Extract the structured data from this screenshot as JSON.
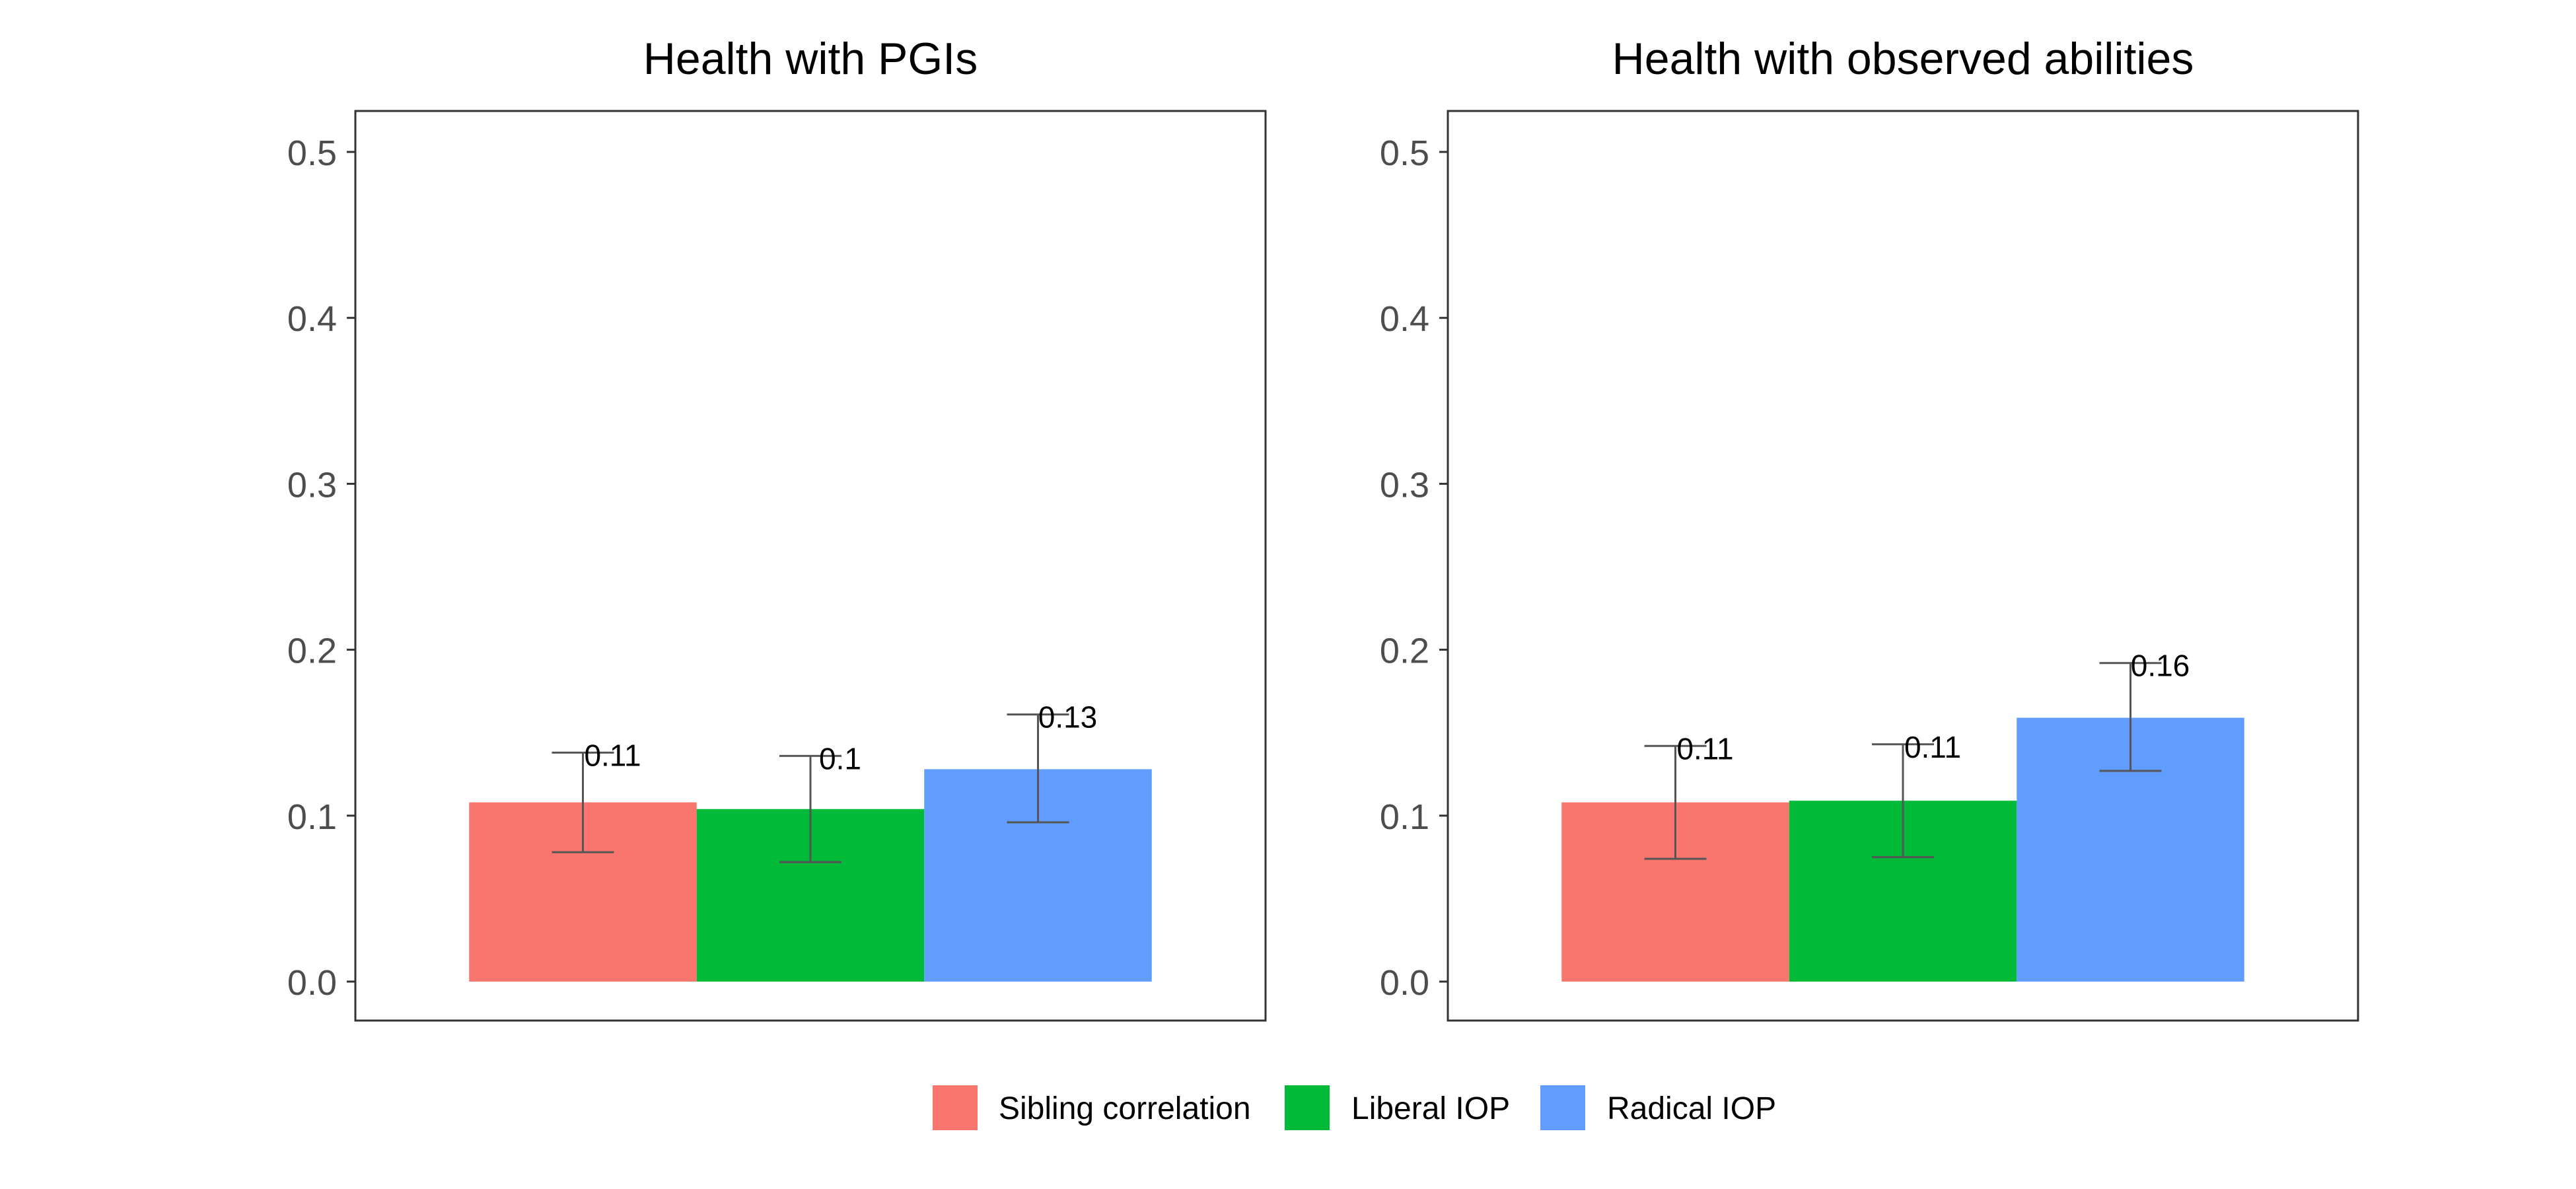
{
  "legend": {
    "position": "bottom",
    "items": [
      {
        "label": "Sibling correlation",
        "color": "#F8766D"
      },
      {
        "label": "Liberal IOP",
        "color": "#00BA38"
      },
      {
        "label": "Radical IOP",
        "color": "#619CFF"
      }
    ]
  },
  "chart_data": [
    {
      "type": "bar",
      "title": "Health with PGIs",
      "xlabel": "",
      "ylabel": "",
      "ylim": [
        0,
        0.5
      ],
      "yticks": [
        "0.0",
        "0.1",
        "0.2",
        "0.3",
        "0.4",
        "0.5"
      ],
      "grid": false,
      "categories": [
        "Sibling correlation",
        "Liberal IOP",
        "Radical IOP"
      ],
      "colors": [
        "#F8766D",
        "#00BA38",
        "#619CFF"
      ],
      "values": [
        0.108,
        0.104,
        0.128
      ],
      "error_low": [
        0.078,
        0.072,
        0.096
      ],
      "error_high": [
        0.138,
        0.136,
        0.161
      ],
      "labels": [
        "0.11",
        "0.1",
        "0.13"
      ]
    },
    {
      "type": "bar",
      "title": "Health with observed abilities",
      "xlabel": "",
      "ylabel": "",
      "ylim": [
        0,
        0.5
      ],
      "yticks": [
        "0.0",
        "0.1",
        "0.2",
        "0.3",
        "0.4",
        "0.5"
      ],
      "grid": false,
      "categories": [
        "Sibling correlation",
        "Liberal IOP",
        "Radical IOP"
      ],
      "colors": [
        "#F8766D",
        "#00BA38",
        "#619CFF"
      ],
      "values": [
        0.108,
        0.109,
        0.159
      ],
      "error_low": [
        0.074,
        0.075,
        0.127
      ],
      "error_high": [
        0.142,
        0.143,
        0.192
      ],
      "labels": [
        "0.11",
        "0.11",
        "0.16"
      ]
    }
  ]
}
